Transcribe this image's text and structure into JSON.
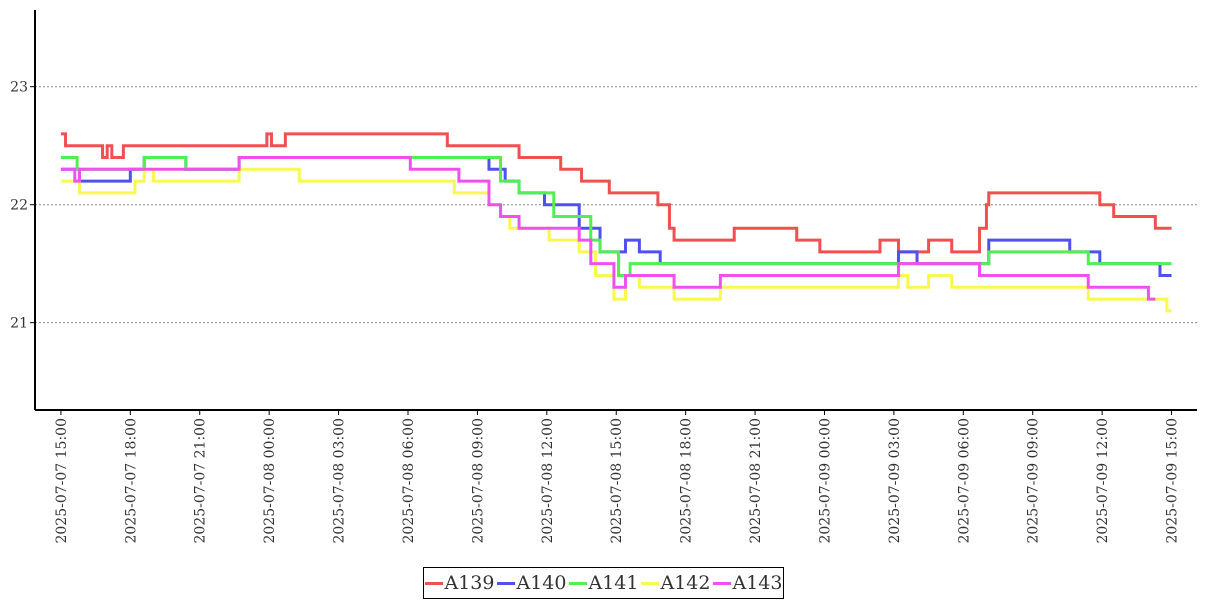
{
  "chart_data": {
    "type": "line",
    "title": "",
    "xlabel": "",
    "ylabel": "",
    "x_unit": "hours since 2025-07-07 15:00",
    "xlim": [
      -1.12,
      49.1
    ],
    "ylim": [
      20.26,
      23.65
    ],
    "yticks": [
      21,
      22,
      23
    ],
    "grid": "horizontal dotted",
    "legend_position": "bottom-center",
    "xticks": [
      {
        "h": 0,
        "label": "2025-07-07  15:00"
      },
      {
        "h": 3,
        "label": "2025-07-07  18:00"
      },
      {
        "h": 6,
        "label": "2025-07-07  21:00"
      },
      {
        "h": 9,
        "label": "2025-07-08  00:00"
      },
      {
        "h": 12,
        "label": "2025-07-08  03:00"
      },
      {
        "h": 15,
        "label": "2025-07-08  06:00"
      },
      {
        "h": 18,
        "label": "2025-07-08  09:00"
      },
      {
        "h": 21,
        "label": "2025-07-08  12:00"
      },
      {
        "h": 24,
        "label": "2025-07-08  15:00"
      },
      {
        "h": 27,
        "label": "2025-07-08  18:00"
      },
      {
        "h": 30,
        "label": "2025-07-08  21:00"
      },
      {
        "h": 33,
        "label": "2025-07-09  00:00"
      },
      {
        "h": 36,
        "label": "2025-07-09  03:00"
      },
      {
        "h": 39,
        "label": "2025-07-09  06:00"
      },
      {
        "h": 42,
        "label": "2025-07-09  09:00"
      },
      {
        "h": 45,
        "label": "2025-07-09  12:00"
      },
      {
        "h": 48,
        "label": "2025-07-09  15:00"
      }
    ],
    "series": [
      {
        "name": "A139",
        "color": "#f05050",
        "points": [
          [
            0,
            22.6
          ],
          [
            0.2,
            22.5
          ],
          [
            1.8,
            22.4
          ],
          [
            2.0,
            22.5
          ],
          [
            2.2,
            22.4
          ],
          [
            2.7,
            22.5
          ],
          [
            8.9,
            22.6
          ],
          [
            9.1,
            22.5
          ],
          [
            9.7,
            22.6
          ],
          [
            16.7,
            22.5
          ],
          [
            19.8,
            22.4
          ],
          [
            21.6,
            22.3
          ],
          [
            22.5,
            22.2
          ],
          [
            23.7,
            22.1
          ],
          [
            25.8,
            22.0
          ],
          [
            26.3,
            21.8
          ],
          [
            26.5,
            21.7
          ],
          [
            29.1,
            21.8
          ],
          [
            31.8,
            21.7
          ],
          [
            32.8,
            21.6
          ],
          [
            35.4,
            21.7
          ],
          [
            36.2,
            21.6
          ],
          [
            37.5,
            21.7
          ],
          [
            38.5,
            21.6
          ],
          [
            39.7,
            21.8
          ],
          [
            40.0,
            22.0
          ],
          [
            40.1,
            22.1
          ],
          [
            44.9,
            22.0
          ],
          [
            45.5,
            21.9
          ],
          [
            47.3,
            21.8
          ],
          [
            48,
            21.8
          ]
        ]
      },
      {
        "name": "A140",
        "color": "#5050f0",
        "points": [
          [
            0,
            22.3
          ],
          [
            0.8,
            22.2
          ],
          [
            3.0,
            22.3
          ],
          [
            3.6,
            22.4
          ],
          [
            5.4,
            22.3
          ],
          [
            7.7,
            22.4
          ],
          [
            18.5,
            22.3
          ],
          [
            19.2,
            22.2
          ],
          [
            19.8,
            22.1
          ],
          [
            20.9,
            22.0
          ],
          [
            22.4,
            21.8
          ],
          [
            23.3,
            21.6
          ],
          [
            24.4,
            21.7
          ],
          [
            25.0,
            21.6
          ],
          [
            25.9,
            21.5
          ],
          [
            36.2,
            21.6
          ],
          [
            37.0,
            21.5
          ],
          [
            40.1,
            21.7
          ],
          [
            43.6,
            21.6
          ],
          [
            44.9,
            21.5
          ],
          [
            47.5,
            21.4
          ],
          [
            48,
            21.4
          ]
        ]
      },
      {
        "name": "A141",
        "color": "#50f050",
        "points": [
          [
            0,
            22.4
          ],
          [
            0.7,
            22.3
          ],
          [
            3.6,
            22.4
          ],
          [
            5.4,
            22.3
          ],
          [
            7.7,
            22.4
          ],
          [
            19.0,
            22.2
          ],
          [
            19.8,
            22.1
          ],
          [
            21.3,
            21.9
          ],
          [
            22.9,
            21.7
          ],
          [
            23.3,
            21.6
          ],
          [
            24.1,
            21.4
          ],
          [
            24.6,
            21.5
          ],
          [
            40.1,
            21.6
          ],
          [
            44.4,
            21.5
          ],
          [
            48,
            21.5
          ]
        ]
      },
      {
        "name": "A142",
        "color": "#f8f850",
        "points": [
          [
            0,
            22.2
          ],
          [
            0.8,
            22.1
          ],
          [
            3.2,
            22.2
          ],
          [
            3.6,
            22.3
          ],
          [
            4.0,
            22.2
          ],
          [
            7.7,
            22.3
          ],
          [
            10.3,
            22.2
          ],
          [
            17.0,
            22.1
          ],
          [
            18.5,
            22.0
          ],
          [
            19.0,
            21.9
          ],
          [
            19.4,
            21.8
          ],
          [
            21.1,
            21.7
          ],
          [
            22.4,
            21.6
          ],
          [
            23.1,
            21.4
          ],
          [
            23.9,
            21.2
          ],
          [
            24.4,
            21.4
          ],
          [
            25.0,
            21.3
          ],
          [
            26.5,
            21.2
          ],
          [
            28.5,
            21.3
          ],
          [
            36.2,
            21.4
          ],
          [
            36.6,
            21.3
          ],
          [
            37.5,
            21.4
          ],
          [
            38.5,
            21.3
          ],
          [
            44.4,
            21.2
          ],
          [
            47.8,
            21.1
          ],
          [
            48,
            21.1
          ]
        ]
      },
      {
        "name": "A143",
        "color": "#f050f0",
        "points": [
          [
            0,
            22.3
          ],
          [
            0.6,
            22.2
          ],
          [
            0.8,
            22.3
          ],
          [
            7.7,
            22.4
          ],
          [
            15.1,
            22.3
          ],
          [
            17.2,
            22.2
          ],
          [
            18.5,
            22.0
          ],
          [
            19.0,
            21.9
          ],
          [
            19.8,
            21.8
          ],
          [
            22.4,
            21.7
          ],
          [
            22.9,
            21.5
          ],
          [
            23.9,
            21.3
          ],
          [
            24.4,
            21.4
          ],
          [
            25.0,
            21.4
          ],
          [
            26.5,
            21.3
          ],
          [
            28.5,
            21.4
          ],
          [
            36.2,
            21.5
          ],
          [
            39.7,
            21.4
          ],
          [
            44.4,
            21.3
          ],
          [
            47.0,
            21.2
          ],
          [
            47.3,
            21.2
          ]
        ]
      }
    ]
  }
}
